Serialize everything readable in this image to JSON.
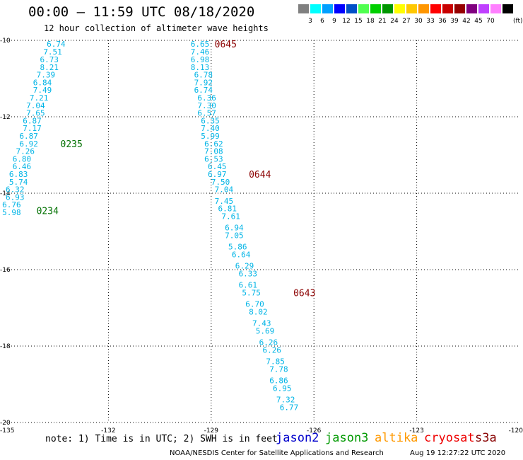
{
  "title": "00:00 – 11:59 UTC 08/18/2020",
  "subtitle": "12 hour collection of altimeter wave heights",
  "legend": {
    "colors": [
      "#808080",
      "#00ffff",
      "#00a0ff",
      "#0000ff",
      "#0050c8",
      "#50ff50",
      "#00d000",
      "#009600",
      "#ffff00",
      "#ffc800",
      "#ff9600",
      "#ff0000",
      "#c80000",
      "#960000",
      "#800080",
      "#c040ff",
      "#ff80ff",
      "#000000"
    ],
    "labels": [
      "3",
      "6",
      "9",
      "12",
      "15",
      "18",
      "21",
      "24",
      "27",
      "30",
      "33",
      "36",
      "39",
      "42",
      "45",
      "70"
    ],
    "unit": "(ft)"
  },
  "note": "note: 1) Time is in UTC; 2) SWH is in feet",
  "satellites": [
    {
      "name": "jason2",
      "color": "#0000cc"
    },
    {
      "name": "jason3",
      "color": "#009900"
    },
    {
      "name": "altika",
      "color": "#ff9900"
    },
    {
      "name": "cryosat",
      "color": "#ee0000"
    },
    {
      "name": "s3a",
      "color": "#880000"
    }
  ],
  "credit": "NOAA/NESDIS Center for Satellite Applications and Research",
  "timestamp": "Aug 19 12:27:22 UTC 2020",
  "chart_data": {
    "type": "scatter",
    "x_ticks": [
      "-135",
      "-132",
      "-129",
      "-126",
      "-123",
      "-120"
    ],
    "y_ticks": [
      "-10",
      "-12",
      "-14",
      "-16",
      "-18",
      "-20"
    ],
    "xlim": [
      -135,
      -120
    ],
    "ylim": [
      -20,
      -10
    ],
    "grid": true,
    "point_color": "#00b4e6",
    "tracks": [
      {
        "points": [
          {
            "lon": -133.8,
            "lat": -10.09,
            "v": "6.74"
          },
          {
            "lon": -133.9,
            "lat": -10.3,
            "v": "7.51"
          },
          {
            "lon": -134.0,
            "lat": -10.5,
            "v": "6.73"
          },
          {
            "lon": -134.0,
            "lat": -10.7,
            "v": "8.21"
          },
          {
            "lon": -134.1,
            "lat": -10.9,
            "v": "7.39"
          },
          {
            "lon": -134.2,
            "lat": -11.1,
            "v": "6.84"
          },
          {
            "lon": -134.2,
            "lat": -11.3,
            "v": "7.49"
          },
          {
            "lon": -134.3,
            "lat": -11.5,
            "v": "7.21"
          },
          {
            "lon": -134.4,
            "lat": -11.7,
            "v": "7.04"
          },
          {
            "lon": -134.4,
            "lat": -11.9,
            "v": "7.65"
          },
          {
            "lon": -134.5,
            "lat": -12.1,
            "v": "6.87"
          },
          {
            "lon": -134.5,
            "lat": -12.3,
            "v": "7.17"
          },
          {
            "lon": -134.6,
            "lat": -12.5,
            "v": "6.87"
          },
          {
            "lon": -134.6,
            "lat": -12.7,
            "v": "6.92"
          },
          {
            "lon": -134.7,
            "lat": -12.9,
            "v": "7.26"
          },
          {
            "lon": -134.8,
            "lat": -13.1,
            "v": "6.80"
          },
          {
            "lon": -134.8,
            "lat": -13.3,
            "v": "6.46"
          },
          {
            "lon": -134.9,
            "lat": -13.5,
            "v": "6.83"
          },
          {
            "lon": -134.9,
            "lat": -13.7,
            "v": "5.74"
          },
          {
            "lon": -135.0,
            "lat": -13.9,
            "v": "6.32"
          },
          {
            "lon": -135.0,
            "lat": -14.1,
            "v": "6.93"
          },
          {
            "lon": -135.1,
            "lat": -14.3,
            "v": "6.76"
          },
          {
            "lon": -135.1,
            "lat": -14.5,
            "v": "5.98"
          }
        ],
        "times": [
          {
            "lon": -133.4,
            "lat": -12.7,
            "t": "0235",
            "color": "#007000"
          },
          {
            "lon": -134.1,
            "lat": -14.45,
            "t": "0234",
            "color": "#007000"
          }
        ]
      },
      {
        "points": [
          {
            "lon": -129.6,
            "lat": -10.09,
            "v": "6.65"
          },
          {
            "lon": -129.6,
            "lat": -10.3,
            "v": "7.46"
          },
          {
            "lon": -129.6,
            "lat": -10.5,
            "v": "6.98"
          },
          {
            "lon": -129.6,
            "lat": -10.7,
            "v": "8.13"
          },
          {
            "lon": -129.5,
            "lat": -10.9,
            "v": "6.78"
          },
          {
            "lon": -129.5,
            "lat": -11.1,
            "v": "7.92"
          },
          {
            "lon": -129.5,
            "lat": -11.3,
            "v": "6.74"
          },
          {
            "lon": -129.4,
            "lat": -11.5,
            "v": "6.36"
          },
          {
            "lon": -129.4,
            "lat": -11.7,
            "v": "7.30"
          },
          {
            "lon": -129.4,
            "lat": -11.9,
            "v": "6.57"
          },
          {
            "lon": -129.3,
            "lat": -12.1,
            "v": "6.35"
          },
          {
            "lon": -129.3,
            "lat": -12.3,
            "v": "7.40"
          },
          {
            "lon": -129.3,
            "lat": -12.5,
            "v": "5.99"
          },
          {
            "lon": -129.2,
            "lat": -12.7,
            "v": "6.62"
          },
          {
            "lon": -129.2,
            "lat": -12.9,
            "v": "7.08"
          },
          {
            "lon": -129.2,
            "lat": -13.1,
            "v": "6.53"
          },
          {
            "lon": -129.1,
            "lat": -13.3,
            "v": "6.45"
          },
          {
            "lon": -129.1,
            "lat": -13.5,
            "v": "6.97"
          },
          {
            "lon": -129.0,
            "lat": -13.7,
            "v": "7.50"
          },
          {
            "lon": -128.9,
            "lat": -13.9,
            "v": "7.04"
          },
          {
            "lon": -128.9,
            "lat": -14.2,
            "v": "7.45"
          },
          {
            "lon": -128.8,
            "lat": -14.4,
            "v": "6.81"
          },
          {
            "lon": -128.7,
            "lat": -14.6,
            "v": "7.61"
          },
          {
            "lon": -128.6,
            "lat": -14.9,
            "v": "6.94"
          },
          {
            "lon": -128.6,
            "lat": -15.1,
            "v": "7.05"
          },
          {
            "lon": -128.5,
            "lat": -15.4,
            "v": "5.86"
          },
          {
            "lon": -128.4,
            "lat": -15.6,
            "v": "6.64"
          },
          {
            "lon": -128.3,
            "lat": -15.9,
            "v": "6.29"
          },
          {
            "lon": -128.2,
            "lat": -16.1,
            "v": "6.33"
          },
          {
            "lon": -128.2,
            "lat": -16.4,
            "v": "6.61"
          },
          {
            "lon": -128.1,
            "lat": -16.6,
            "v": "5.75"
          },
          {
            "lon": -128.0,
            "lat": -16.9,
            "v": "6.70"
          },
          {
            "lon": -127.9,
            "lat": -17.1,
            "v": "8.02"
          },
          {
            "lon": -127.8,
            "lat": -17.4,
            "v": "7.43"
          },
          {
            "lon": -127.7,
            "lat": -17.6,
            "v": "5.69"
          },
          {
            "lon": -127.6,
            "lat": -17.9,
            "v": "6.26"
          },
          {
            "lon": -127.5,
            "lat": -18.1,
            "v": "6.26"
          },
          {
            "lon": -127.4,
            "lat": -18.4,
            "v": "7.85"
          },
          {
            "lon": -127.3,
            "lat": -18.6,
            "v": "7.78"
          },
          {
            "lon": -127.3,
            "lat": -18.9,
            "v": "6.86"
          },
          {
            "lon": -127.2,
            "lat": -19.1,
            "v": "6.95"
          },
          {
            "lon": -127.1,
            "lat": -19.4,
            "v": "7.32"
          },
          {
            "lon": -127.0,
            "lat": -19.6,
            "v": "6.77"
          }
        ],
        "times": [
          {
            "lon": -128.9,
            "lat": -10.09,
            "t": "0645",
            "color": "#8b0000"
          },
          {
            "lon": -127.9,
            "lat": -13.5,
            "t": "0644",
            "color": "#8b0000"
          },
          {
            "lon": -126.6,
            "lat": -16.6,
            "t": "0643",
            "color": "#8b0000"
          }
        ]
      }
    ]
  }
}
